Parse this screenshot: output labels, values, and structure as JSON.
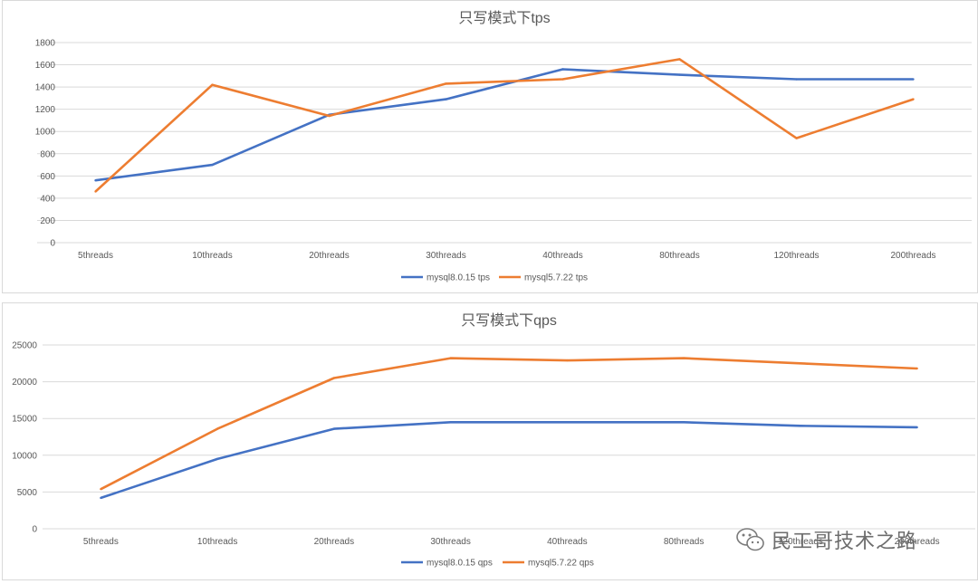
{
  "colors": {
    "mysql8": "#4472c4",
    "mysql57": "#ed7d31",
    "grid": "#d9d9d9",
    "text": "#595959"
  },
  "chart_data": [
    {
      "type": "line",
      "title": "只写模式下tps",
      "categories": [
        "5threads",
        "10threads",
        "20threads",
        "30threads",
        "40threads",
        "80threads",
        "120threads",
        "200threads"
      ],
      "ylim": [
        0,
        1800
      ],
      "yticks": [
        0,
        200,
        400,
        600,
        800,
        1000,
        1200,
        1400,
        1600,
        1800
      ],
      "grid": true,
      "legend": "bottom",
      "series": [
        {
          "name": "mysql8.0.15 tps",
          "color": "#4472c4",
          "values": [
            560,
            700,
            1150,
            1290,
            1560,
            1510,
            1470,
            1470
          ]
        },
        {
          "name": "mysql5.7.22 tps",
          "color": "#ed7d31",
          "values": [
            460,
            1420,
            1140,
            1430,
            1470,
            1650,
            940,
            1290
          ]
        }
      ]
    },
    {
      "type": "line",
      "title": "只写模式下qps",
      "categories": [
        "5threads",
        "10threads",
        "20threads",
        "30threads",
        "40threads",
        "80threads",
        "120threads",
        "200threads"
      ],
      "ylim": [
        0,
        25000
      ],
      "yticks": [
        0,
        5000,
        10000,
        15000,
        20000,
        25000
      ],
      "grid": true,
      "legend": "bottom",
      "series": [
        {
          "name": "mysql8.0.15 qps",
          "color": "#4472c4",
          "values": [
            4200,
            9500,
            13600,
            14500,
            14500,
            14500,
            14000,
            13800
          ]
        },
        {
          "name": "mysql5.7.22 qps",
          "color": "#ed7d31",
          "values": [
            5400,
            13600,
            20500,
            23200,
            22900,
            23200,
            22500,
            21800
          ]
        }
      ]
    }
  ],
  "watermark": {
    "text": "民工哥技术之路",
    "icon": "wechat-icon"
  }
}
